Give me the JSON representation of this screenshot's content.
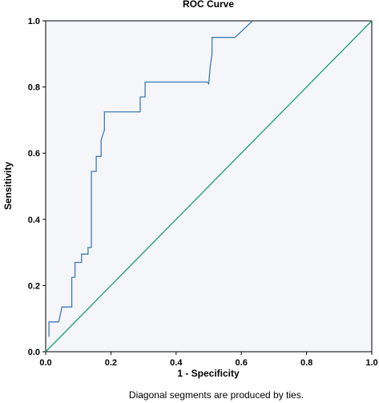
{
  "chart_data": {
    "type": "line",
    "title": "ROC  Curve",
    "xlabel": "1 - Specificity",
    "ylabel": "Sensitivity",
    "xlim": [
      0.0,
      1.0
    ],
    "ylim": [
      0.0,
      1.0
    ],
    "xticks": [
      "0.0",
      "0.2",
      "0.4",
      "0.6",
      "0.8",
      "1.0"
    ],
    "yticks": [
      "0.0",
      "0.2",
      "0.4",
      "0.6",
      "0.8",
      "1.0"
    ],
    "footnote": "Diagonal segments are produced by ties.",
    "colors": {
      "roc": "#3d7ab8",
      "reference": "#1aa06b",
      "plot_bg": "#f5f6fa"
    },
    "series": [
      {
        "x": [
          0.01,
          0.01,
          0.04,
          0.05,
          0.08,
          0.08,
          0.09,
          0.09,
          0.11,
          0.11,
          0.13,
          0.13,
          0.14,
          0.14,
          0.155,
          0.155,
          0.17,
          0.17,
          0.18,
          0.18,
          0.29,
          0.29,
          0.305,
          0.305,
          0.49,
          0.495,
          0.5,
          0.505,
          0.51,
          0.51,
          0.58,
          0.635
        ],
        "y": [
          0.045,
          0.09,
          0.09,
          0.135,
          0.135,
          0.225,
          0.225,
          0.27,
          0.27,
          0.295,
          0.295,
          0.315,
          0.315,
          0.545,
          0.545,
          0.59,
          0.59,
          0.64,
          0.67,
          0.725,
          0.725,
          0.77,
          0.77,
          0.815,
          0.815,
          0.815,
          0.81,
          0.865,
          0.9,
          0.95,
          0.95,
          1.0
        ]
      },
      {
        "x": [
          0.0,
          1.0
        ],
        "y": [
          0.0,
          1.0
        ]
      }
    ]
  }
}
